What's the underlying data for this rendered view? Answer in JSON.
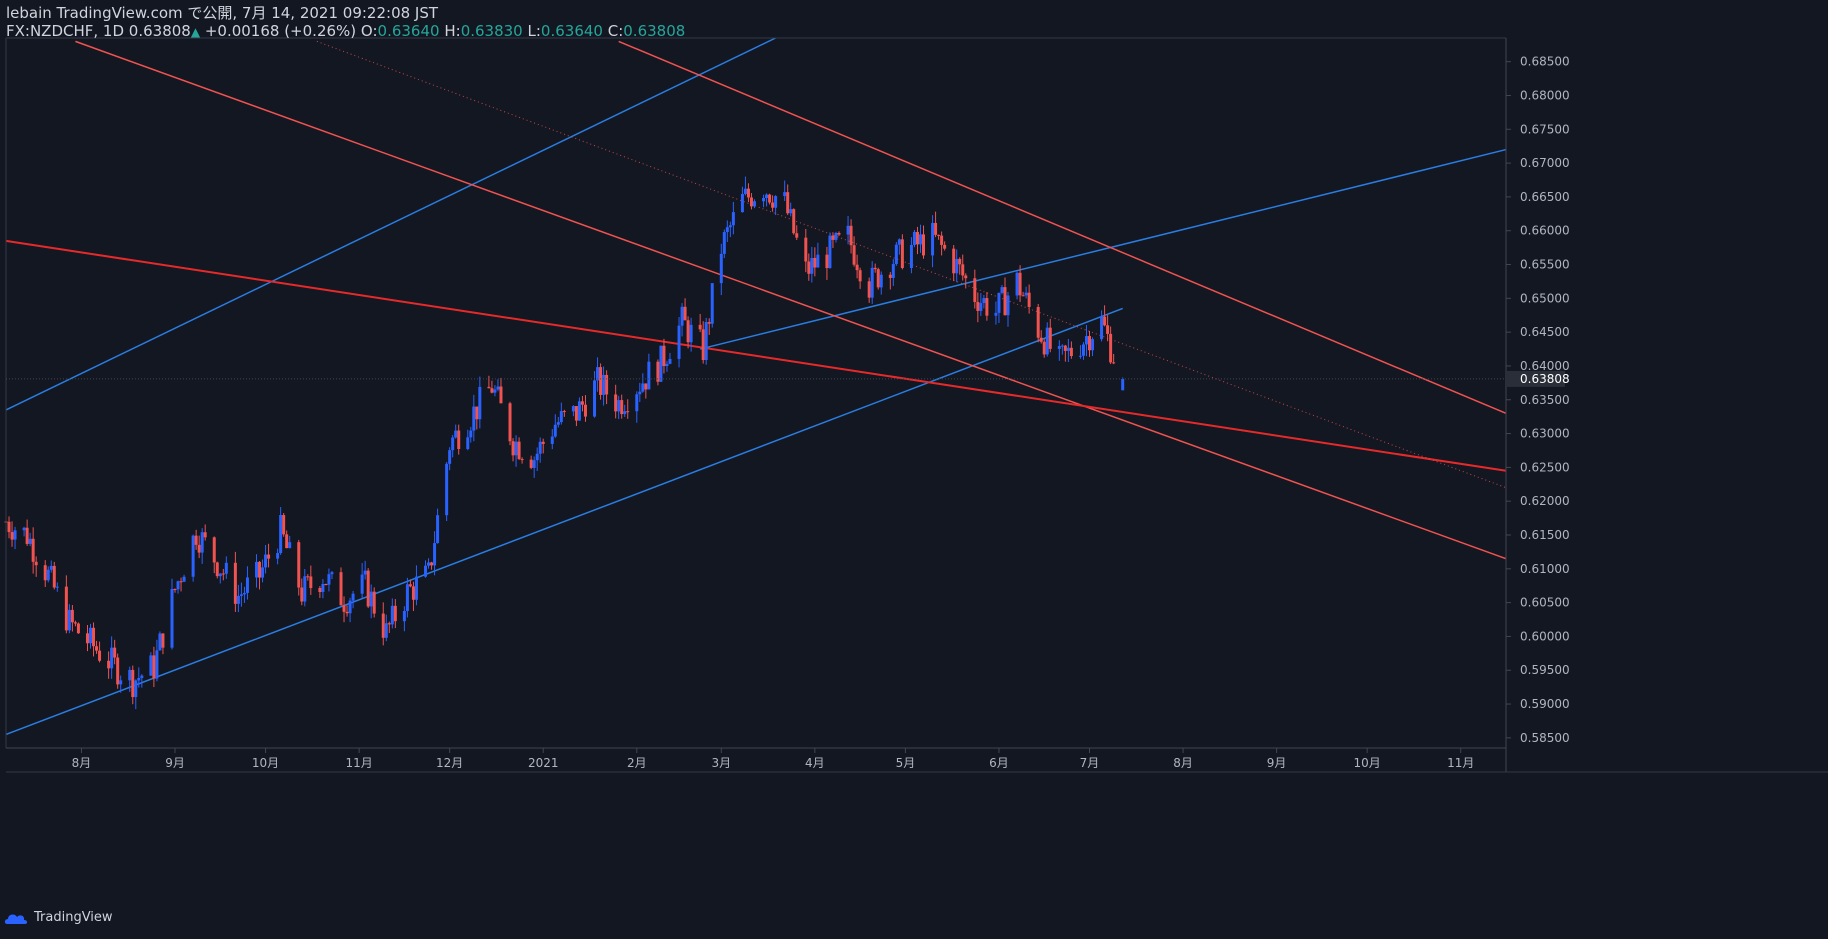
{
  "header": {
    "publish": "lebain TradingView.com で公開, 7月 14, 2021 09:22:08 JST",
    "symbol": "FX:NZDCHF, 1D",
    "last": "0.63808",
    "change": "+0.00168 (+0.26%)",
    "o_label": "O:",
    "o_value": "0.63640",
    "h_label": "H:",
    "h_value": "0.63830",
    "l_label": "L:",
    "l_value": "0.63640",
    "c_label": "C:",
    "c_value": "0.63808"
  },
  "footer": {
    "brand": "TradingView"
  },
  "colors": {
    "background": "#131722",
    "up": "#2962ff",
    "down": "#f05350",
    "trend_blue": "#2a7de1",
    "trend_red": "#f05350",
    "trend_red_strong": "#e62a2a",
    "axis_text": "#b2b5be"
  },
  "chart_data": {
    "type": "candlestick",
    "y_axis": {
      "ticks": [
        "0.68500",
        "0.68000",
        "0.67500",
        "0.67000",
        "0.66500",
        "0.66000",
        "0.65500",
        "0.65000",
        "0.64500",
        "0.64000",
        "0.63500",
        "0.63000",
        "0.62500",
        "0.62000",
        "0.61500",
        "0.61000",
        "0.60500",
        "0.60000",
        "0.59500",
        "0.59000",
        "0.58500"
      ],
      "range": [
        0.5835,
        0.6885
      ],
      "current_price_label": "0.63808",
      "current_price": 0.63808
    },
    "x_axis": {
      "ticks": [
        "8月",
        "9月",
        "10月",
        "11月",
        "12月",
        "2021",
        "2月",
        "3月",
        "4月",
        "5月",
        "6月",
        "7月",
        "8月",
        "9月",
        "10月",
        "11月"
      ],
      "tick_dates": [
        "2020-08-01",
        "2020-09-01",
        "2020-10-01",
        "2020-11-01",
        "2020-12-01",
        "2021-01-01",
        "2021-02-01",
        "2021-03-01",
        "2021-04-01",
        "2021-05-01",
        "2021-06-01",
        "2021-07-01",
        "2021-08-01",
        "2021-09-01",
        "2021-10-01",
        "2021-11-01"
      ],
      "range": [
        "2020-07-07",
        "2021-11-16"
      ]
    },
    "candles_close": [
      [
        "2020-07-07",
        0.617
      ],
      [
        "2020-07-14",
        0.615
      ],
      [
        "2020-07-21",
        0.609
      ],
      [
        "2020-07-28",
        0.602
      ],
      [
        "2020-08-04",
        0.599
      ],
      [
        "2020-08-11",
        0.596
      ],
      [
        "2020-08-18",
        0.5935
      ],
      [
        "2020-08-25",
        0.5955
      ],
      [
        "2020-09-01",
        0.607
      ],
      [
        "2020-09-08",
        0.6155
      ],
      [
        "2020-09-15",
        0.611
      ],
      [
        "2020-09-22",
        0.606
      ],
      [
        "2020-09-29",
        0.609
      ],
      [
        "2020-10-06",
        0.6155
      ],
      [
        "2020-10-13",
        0.6065
      ],
      [
        "2020-10-20",
        0.609
      ],
      [
        "2020-10-27",
        0.6055
      ],
      [
        "2020-11-03",
        0.6075
      ],
      [
        "2020-11-10",
        0.6005
      ],
      [
        "2020-11-17",
        0.6065
      ],
      [
        "2020-11-24",
        0.609
      ],
      [
        "2020-12-01",
        0.6285
      ],
      [
        "2020-12-08",
        0.6325
      ],
      [
        "2020-12-15",
        0.637
      ],
      [
        "2020-12-22",
        0.629
      ],
      [
        "2020-12-29",
        0.6265
      ],
      [
        "2021-01-05",
        0.6315
      ],
      [
        "2021-01-12",
        0.633
      ],
      [
        "2021-01-19",
        0.6375
      ],
      [
        "2021-01-26",
        0.6345
      ],
      [
        "2021-02-02",
        0.6375
      ],
      [
        "2021-02-09",
        0.6405
      ],
      [
        "2021-02-16",
        0.6465
      ],
      [
        "2021-02-23",
        0.6425
      ],
      [
        "2021-03-01",
        0.6575
      ],
      [
        "2021-03-08",
        0.6645
      ],
      [
        "2021-03-15",
        0.6665
      ],
      [
        "2021-03-22",
        0.664
      ],
      [
        "2021-03-29",
        0.654
      ],
      [
        "2021-04-05",
        0.6565
      ],
      [
        "2021-04-12",
        0.659
      ],
      [
        "2021-04-19",
        0.652
      ],
      [
        "2021-04-26",
        0.6555
      ],
      [
        "2021-05-03",
        0.6575
      ],
      [
        "2021-05-10",
        0.659
      ],
      [
        "2021-05-17",
        0.6555
      ],
      [
        "2021-05-24",
        0.6505
      ],
      [
        "2021-05-31",
        0.648
      ],
      [
        "2021-06-07",
        0.6525
      ],
      [
        "2021-06-14",
        0.6455
      ],
      [
        "2021-06-21",
        0.6405
      ],
      [
        "2021-06-28",
        0.6435
      ],
      [
        "2021-07-05",
        0.6465
      ],
      [
        "2021-07-12",
        0.63808
      ]
    ],
    "trendlines": [
      {
        "name": "blue support",
        "color": "blue",
        "from": [
          "2020-07-07",
          0.5855
        ],
        "to": [
          "2021-07-12",
          0.6485
        ]
      },
      {
        "name": "blue upper",
        "color": "blue",
        "from": [
          "2020-07-07",
          0.6335
        ],
        "to": [
          "2021-03-19",
          0.6885
        ]
      },
      {
        "name": "blue parallel",
        "color": "blue",
        "from": [
          "2021-02-22",
          0.6425
        ],
        "to": [
          "2021-11-16",
          0.672
        ]
      },
      {
        "name": "red upper channel",
        "color": "red",
        "from": [
          "2021-01-26",
          0.688
        ],
        "to": [
          "2021-11-16",
          0.633
        ]
      },
      {
        "name": "red lower channel",
        "color": "red",
        "from": [
          "2020-07-30",
          0.688
        ],
        "to": [
          "2021-11-16",
          0.6115
        ]
      },
      {
        "name": "red long",
        "color": "red-strong",
        "from": [
          "2020-07-07",
          0.6585
        ],
        "to": [
          "2021-11-16",
          0.6245
        ]
      },
      {
        "name": "red dotted mid",
        "color": "red-dotted",
        "from": [
          "2020-10-18",
          0.688
        ],
        "to": [
          "2021-11-16",
          0.622
        ]
      }
    ]
  }
}
